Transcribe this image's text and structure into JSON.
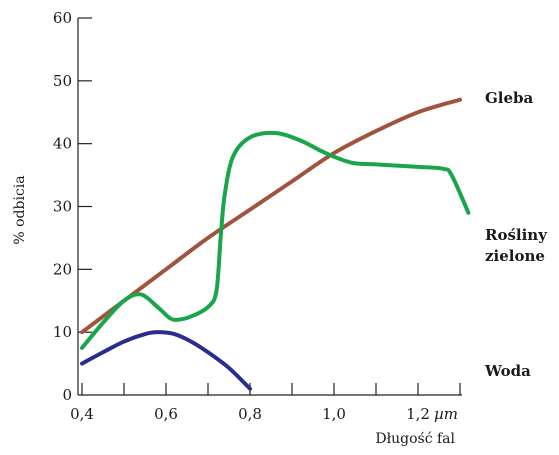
{
  "chart_data": {
    "type": "line",
    "xlabel": "Długość fal",
    "ylabel": "% odbicia",
    "xlim": [
      0.4,
      1.3
    ],
    "ylim": [
      0,
      60
    ],
    "x_ticks": [
      {
        "value": 0.4,
        "label": "0,4"
      },
      {
        "value": 0.6,
        "label": "0,6"
      },
      {
        "value": 0.8,
        "label": "0,8"
      },
      {
        "value": 1.0,
        "label": "1,0"
      },
      {
        "value": 1.2,
        "label": "1,2"
      }
    ],
    "x_unit": "µm",
    "y_ticks": [
      {
        "value": 0,
        "label": "0"
      },
      {
        "value": 10,
        "label": "10"
      },
      {
        "value": 20,
        "label": "20"
      },
      {
        "value": 30,
        "label": "30"
      },
      {
        "value": 40,
        "label": "40"
      },
      {
        "value": 50,
        "label": "50"
      },
      {
        "value": 60,
        "label": "60"
      }
    ],
    "grid": false,
    "series": [
      {
        "name": "Gleba",
        "label_lines": [
          "Gleba"
        ],
        "color": "#a0543e",
        "x": [
          0.4,
          0.5,
          0.6,
          0.7,
          0.8,
          0.9,
          1.0,
          1.1,
          1.2,
          1.3
        ],
        "y": [
          10.0,
          15.0,
          20.0,
          25.0,
          29.5,
          34.0,
          38.5,
          42.0,
          45.0,
          47.0
        ]
      },
      {
        "name": "Rośliny zielone",
        "label_lines": [
          "Rośliny",
          "zielone"
        ],
        "color": "#1aa54a",
        "x": [
          0.4,
          0.45,
          0.5,
          0.54,
          0.58,
          0.61,
          0.63,
          0.66,
          0.7,
          0.72,
          0.73,
          0.74,
          0.76,
          0.8,
          0.86,
          0.92,
          0.98,
          1.04,
          1.1,
          1.2,
          1.26,
          1.28,
          1.32
        ],
        "y": [
          7.5,
          11.5,
          15.0,
          16.0,
          14.0,
          12.2,
          12.0,
          12.5,
          14.0,
          16.5,
          25.0,
          32.0,
          38.0,
          41.0,
          41.7,
          40.5,
          38.5,
          37.0,
          36.7,
          36.3,
          36.0,
          35.0,
          29.0
        ]
      },
      {
        "name": "Woda",
        "label_lines": [
          "Woda"
        ],
        "color": "#2b2d8e",
        "x": [
          0.4,
          0.45,
          0.5,
          0.55,
          0.58,
          0.62,
          0.66,
          0.7,
          0.75,
          0.8
        ],
        "y": [
          5.0,
          6.8,
          8.5,
          9.7,
          10.0,
          9.7,
          8.5,
          6.8,
          4.3,
          1.0
        ]
      }
    ]
  }
}
